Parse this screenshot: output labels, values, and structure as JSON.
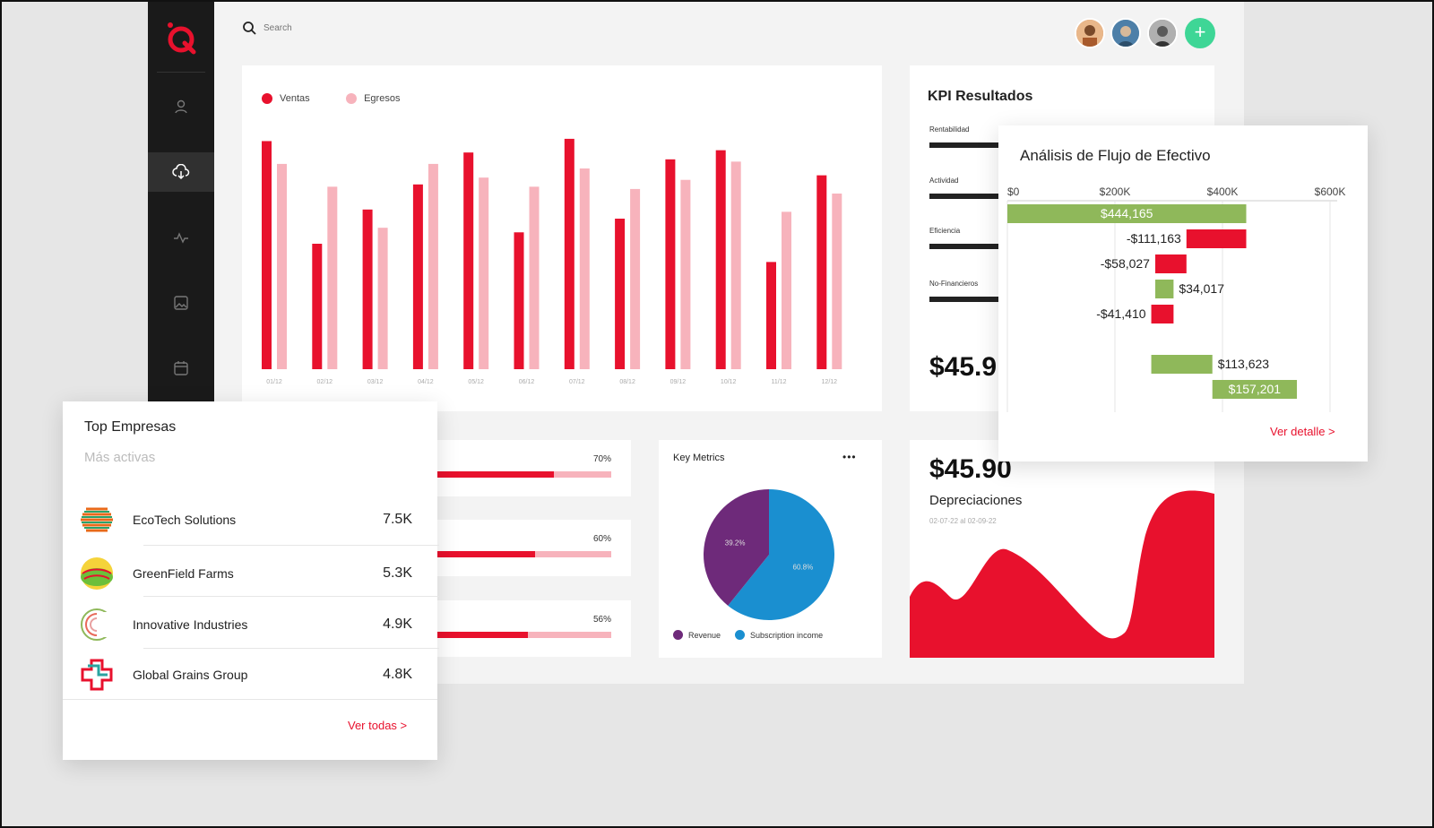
{
  "search": {
    "placeholder": "Search"
  },
  "sales_chart": {
    "legend": [
      {
        "label": "Ventas",
        "color": "#e8112d"
      },
      {
        "label": "Egresos",
        "color": "#f7b3bc"
      }
    ],
    "chart_data": {
      "type": "bar",
      "categories": [
        "01/12",
        "02/12",
        "03/12",
        "04/12",
        "05/12",
        "06/12",
        "07/12",
        "08/12",
        "09/12",
        "10/12",
        "11/12",
        "12/12"
      ],
      "series": [
        {
          "name": "Ventas",
          "values": [
            100,
            55,
            70,
            81,
            95,
            60,
            101,
            66,
            92,
            96,
            47,
            85
          ]
        },
        {
          "name": "Egresos",
          "values": [
            90,
            80,
            62,
            90,
            84,
            80,
            88,
            79,
            83,
            91,
            69,
            77
          ]
        }
      ],
      "ylim": [
        0,
        110
      ]
    }
  },
  "kpi": {
    "title": "KPI Resultados",
    "items": [
      "Rentabilidad",
      "Actividad",
      "Eficiencia",
      "No-Financieros"
    ],
    "value": "$45.9"
  },
  "cashflow": {
    "title": "Análisis de Flujo de Efectivo",
    "chart_data": {
      "type": "bar",
      "xlim": [
        0,
        600000
      ],
      "tick_labels": [
        "$0",
        "$200K",
        "$400K",
        "$600K"
      ],
      "tick_values": [
        0,
        200000,
        400000,
        600000
      ],
      "bars": [
        {
          "label": "$444,165",
          "start": 0,
          "end": 444165,
          "color": "#8fb85a",
          "inside": true
        },
        {
          "label": "-$111,163",
          "start": 333002,
          "end": 444165,
          "color": "#e8112d",
          "inside": false
        },
        {
          "label": "-$58,027",
          "start": 274975,
          "end": 333002,
          "color": "#e8112d",
          "inside": false
        },
        {
          "label": "$34,017",
          "start": 274975,
          "end": 308992,
          "color": "#8fb85a",
          "inside": false
        },
        {
          "label": "-$41,410",
          "start": 267582,
          "end": 308992,
          "color": "#e8112d",
          "inside": false
        },
        {
          "label": "",
          "start": 0,
          "end": 0,
          "color": "#ffffff",
          "inside": false
        },
        {
          "label": "$113,623",
          "start": 267582,
          "end": 381205,
          "color": "#8fb85a",
          "inside": false
        },
        {
          "label": "$157,201",
          "start": 381205,
          "end": 538406,
          "color": "#8fb85a",
          "inside": true
        }
      ]
    },
    "link": "Ver detalle >"
  },
  "progress": [
    {
      "pct_label": "70%",
      "value": 0.7
    },
    {
      "pct_label": "60%",
      "value": 0.6
    },
    {
      "pct_label": "56%",
      "value": 0.56
    }
  ],
  "key_metrics": {
    "title": "Key Metrics",
    "menu": "•••",
    "chart_data": {
      "type": "pie",
      "slices": [
        {
          "name": "Revenue",
          "value": 39.2,
          "label": "39.2%",
          "color": "#6e2a7a"
        },
        {
          "name": "Subscription income",
          "value": 60.8,
          "label": "60.8%",
          "color": "#1a8fd0"
        }
      ]
    }
  },
  "depreciation": {
    "value": "$45.90",
    "title": "Depreciaciones",
    "range": "02-07-22 al 02-09-22",
    "color": "#e8112d"
  },
  "top_companies": {
    "title": "Top Empresas",
    "subtitle": "Más activas",
    "items": [
      {
        "name": "EcoTech Solutions",
        "value": "7.5K"
      },
      {
        "name": "GreenField Farms",
        "value": "5.3K"
      },
      {
        "name": "Innovative Industries",
        "value": "4.9K"
      },
      {
        "name": "Global Grains Group",
        "value": "4.8K"
      }
    ],
    "link": "Ver todas >"
  }
}
